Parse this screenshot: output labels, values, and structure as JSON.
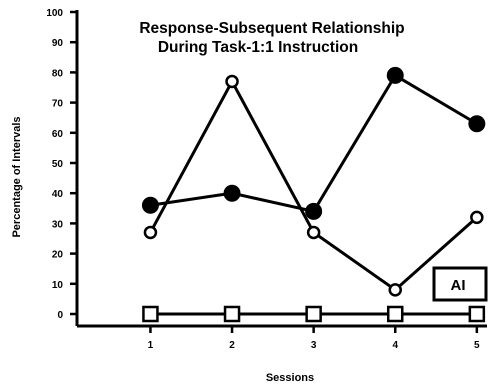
{
  "chart_data": {
    "type": "line",
    "title": "Response-Subsequent Relationship",
    "subtitle": "During Task-1:1 Instruction",
    "xlabel": "Sessions",
    "ylabel": "Percentage of Intervals",
    "x": [
      1,
      2,
      3,
      4,
      5
    ],
    "xlim": [
      0.1,
      5.1
    ],
    "ylim": [
      0,
      100
    ],
    "yticks": [
      0,
      10,
      20,
      30,
      40,
      50,
      60,
      70,
      80,
      90,
      100
    ],
    "xticks": [
      1,
      2,
      3,
      4,
      5
    ],
    "grid": false,
    "legend_label": "AI",
    "series": [
      {
        "marker": "filled-circle",
        "values": [
          36,
          40,
          34,
          79,
          63
        ]
      },
      {
        "marker": "open-circle",
        "values": [
          27,
          77,
          27,
          8,
          32
        ]
      },
      {
        "marker": "open-square",
        "values": [
          0,
          0,
          0,
          0,
          0
        ]
      }
    ]
  }
}
